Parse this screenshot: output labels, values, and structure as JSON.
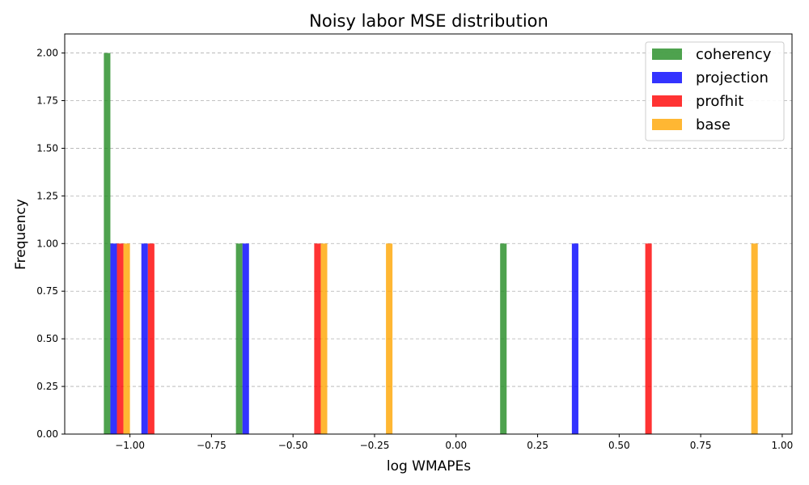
{
  "chart_data": {
    "type": "bar",
    "title": "Noisy labor MSE distribution",
    "xlabel": "log WMAPEs",
    "ylabel": "Frequency",
    "xlim": [
      -1.2,
      1.03
    ],
    "ylim": [
      0,
      2.1
    ],
    "xticks": [
      "−1.00",
      "−0.75",
      "−0.50",
      "−0.25",
      "0.00",
      "0.25",
      "0.50",
      "0.75",
      "1.00"
    ],
    "xtick_values": [
      -1.0,
      -0.75,
      -0.5,
      -0.25,
      0.0,
      0.25,
      0.5,
      0.75,
      1.0
    ],
    "yticks": [
      "0.00",
      "0.25",
      "0.50",
      "0.75",
      "1.00",
      "1.25",
      "1.50",
      "1.75",
      "2.00"
    ],
    "ytick_values": [
      0,
      0.25,
      0.5,
      0.75,
      1.0,
      1.25,
      1.5,
      1.75,
      2.0
    ],
    "grid": "y-dashed",
    "legend_position": "top-right",
    "bar_width": 0.02,
    "series": [
      {
        "name": "coherency",
        "color": "#228B22",
        "bars": [
          {
            "x": -1.07,
            "value": 2
          },
          {
            "x": -0.665,
            "value": 1
          },
          {
            "x": 0.145,
            "value": 1
          }
        ]
      },
      {
        "name": "projection",
        "color": "#0000FF",
        "bars": [
          {
            "x": -1.05,
            "value": 1
          },
          {
            "x": -0.955,
            "value": 1
          },
          {
            "x": -0.645,
            "value": 1
          },
          {
            "x": 0.365,
            "value": 1
          }
        ]
      },
      {
        "name": "profhit",
        "color": "#FF0000",
        "bars": [
          {
            "x": -1.03,
            "value": 1
          },
          {
            "x": -0.935,
            "value": 1
          },
          {
            "x": -0.425,
            "value": 1
          },
          {
            "x": 0.59,
            "value": 1
          }
        ]
      },
      {
        "name": "base",
        "color": "#FFA500",
        "bars": [
          {
            "x": -1.01,
            "value": 1
          },
          {
            "x": -0.405,
            "value": 1
          },
          {
            "x": -0.205,
            "value": 1
          },
          {
            "x": 0.915,
            "value": 1
          }
        ]
      }
    ]
  }
}
